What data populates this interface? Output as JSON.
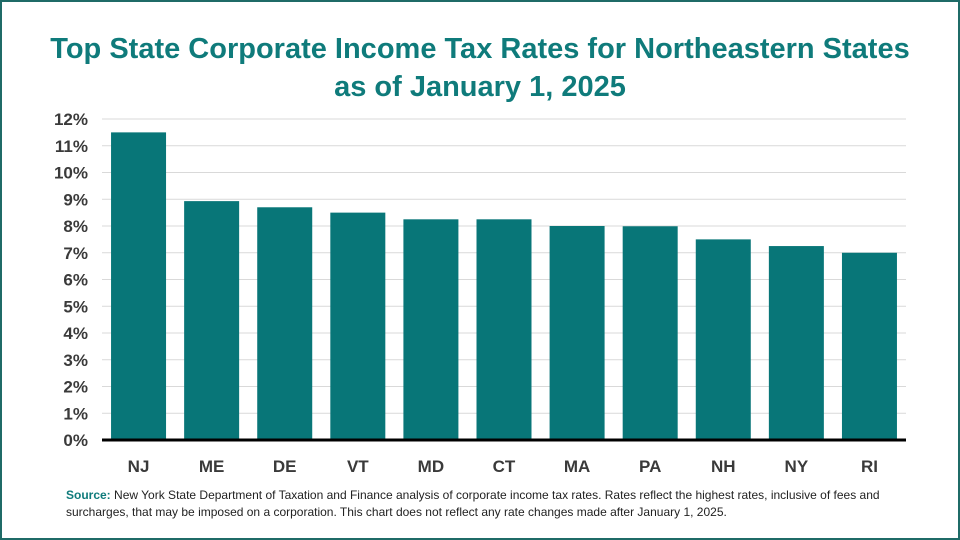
{
  "title_line1": "Top State Corporate Income Tax Rates for Northeastern States",
  "title_line2": "as of January 1, 2025",
  "source_label": "Source:",
  "source_text": "New York State Department of Taxation and Finance analysis of corporate income tax rates. Rates reflect the highest rates, inclusive of fees and surcharges, that may be imposed on a corporation. This chart does not reflect any rate changes made after January 1, 2025.",
  "colors": {
    "bar": "#087678",
    "title": "#0f7b7b",
    "grid": "#d9d9d9",
    "axis": "#000000"
  },
  "chart_data": {
    "type": "bar",
    "title": "Top State Corporate Income Tax Rates for Northeastern States as of January 1, 2025",
    "categories": [
      "NJ",
      "ME",
      "DE",
      "VT",
      "MD",
      "CT",
      "MA",
      "PA",
      "NH",
      "NY",
      "RI"
    ],
    "values": [
      11.5,
      8.93,
      8.7,
      8.5,
      8.25,
      8.25,
      8.0,
      7.99,
      7.5,
      7.25,
      7.0
    ],
    "y_ticks": [
      "0%",
      "1%",
      "2%",
      "3%",
      "4%",
      "5%",
      "6%",
      "7%",
      "8%",
      "9%",
      "10%",
      "11%",
      "12%"
    ],
    "ylim": [
      0,
      12
    ],
    "xlabel": "",
    "ylabel": "",
    "grid": true,
    "legend": "none"
  }
}
